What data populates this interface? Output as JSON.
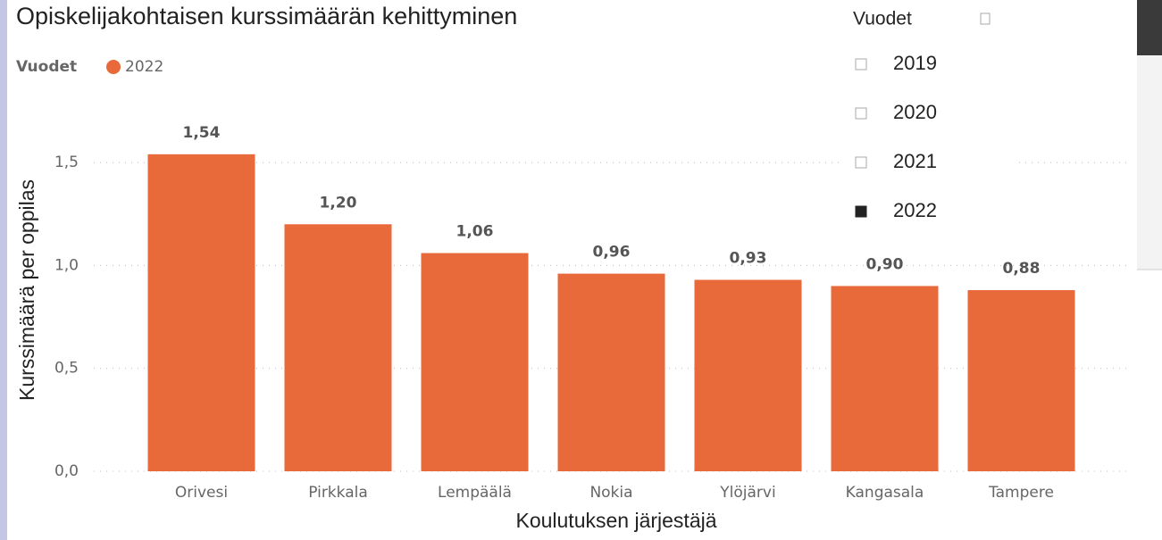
{
  "chart_data": {
    "type": "bar",
    "title": "Opiskelijakohtaisen kurssimäärän kehittyminen",
    "legend_title": "Vuodet",
    "series_name": "2022",
    "categories": [
      "Orivesi",
      "Pirkkala",
      "Lempäälä",
      "Nokia",
      "Ylöjärvi",
      "Kangasala",
      "Tampere"
    ],
    "values": [
      1.54,
      1.2,
      1.06,
      0.96,
      0.93,
      0.9,
      0.88
    ],
    "value_labels": [
      "1,54",
      "1,20",
      "1,06",
      "0,96",
      "0,93",
      "0,90",
      "0,88"
    ],
    "color": "#e8693a",
    "ylim": [
      0,
      1.6
    ],
    "yticks": [
      {
        "value": 0,
        "label": "0,0"
      },
      {
        "value": 0.5,
        "label": "0,5"
      },
      {
        "value": 1,
        "label": "1,0"
      },
      {
        "value": 1.5,
        "label": "1,5"
      }
    ],
    "grid": true,
    "xlabel": "Koulutuksen järjestäjä",
    "ylabel": "Kurssimäärä per oppilas"
  },
  "slicer": {
    "title": "Vuodet",
    "items": [
      {
        "label": "2019",
        "checked": false
      },
      {
        "label": "2020",
        "checked": false
      },
      {
        "label": "2021",
        "checked": false
      },
      {
        "label": "2022",
        "checked": true
      }
    ]
  }
}
